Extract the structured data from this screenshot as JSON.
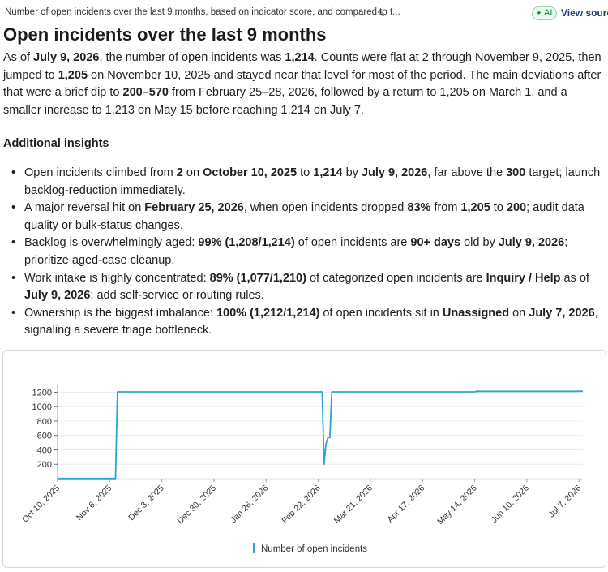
{
  "header": {
    "breadcrumb": "Number of open incidents over the last 9 months, based on indicator score, and compared to t...",
    "edit_icon": "pencil-icon",
    "ai_label": "AI",
    "ai_icon": "sparkle-icon",
    "view_source_label": "View source"
  },
  "title": "Open incidents over the last 9 months",
  "summary": [
    {
      "t": "As of ",
      "b": false
    },
    {
      "t": "July 9, 2026",
      "b": true
    },
    {
      "t": ", the number of open incidents was ",
      "b": false
    },
    {
      "t": "1,214",
      "b": true
    },
    {
      "t": ". Counts were flat at 2 through November 9, 2025, then jumped to ",
      "b": false
    },
    {
      "t": "1,205",
      "b": true
    },
    {
      "t": " on November 10, 2025 and stayed near that level for most of the period. The main deviations after that were a brief dip to ",
      "b": false
    },
    {
      "t": "200–570",
      "b": true
    },
    {
      "t": " from February 25–28, 2026, followed by a return to 1,205 on March 1, and a smaller increase to 1,213 on May 15 before reaching 1,214 on July 7.",
      "b": false
    }
  ],
  "insights_title": "Additional insights",
  "insights": [
    [
      {
        "t": "Open incidents climbed from ",
        "b": false
      },
      {
        "t": "2",
        "b": true
      },
      {
        "t": " on ",
        "b": false
      },
      {
        "t": "October 10, 2025",
        "b": true
      },
      {
        "t": " to ",
        "b": false
      },
      {
        "t": "1,214",
        "b": true
      },
      {
        "t": " by ",
        "b": false
      },
      {
        "t": "July 9, 2026",
        "b": true
      },
      {
        "t": ", far above the ",
        "b": false
      },
      {
        "t": "300",
        "b": true
      },
      {
        "t": " target; launch backlog-reduction immediately.",
        "b": false
      }
    ],
    [
      {
        "t": "A major reversal hit on ",
        "b": false
      },
      {
        "t": "February 25, 2026",
        "b": true
      },
      {
        "t": ", when open incidents dropped ",
        "b": false
      },
      {
        "t": "83%",
        "b": true
      },
      {
        "t": " from ",
        "b": false
      },
      {
        "t": "1,205",
        "b": true
      },
      {
        "t": " to ",
        "b": false
      },
      {
        "t": "200",
        "b": true
      },
      {
        "t": "; audit data quality or bulk-status changes.",
        "b": false
      }
    ],
    [
      {
        "t": "Backlog is overwhelmingly aged: ",
        "b": false
      },
      {
        "t": "99% (1,208/1,214)",
        "b": true
      },
      {
        "t": " of open incidents are ",
        "b": false
      },
      {
        "t": "90+ days",
        "b": true
      },
      {
        "t": " old by ",
        "b": false
      },
      {
        "t": "July 9, 2026",
        "b": true
      },
      {
        "t": "; prioritize aged-case cleanup.",
        "b": false
      }
    ],
    [
      {
        "t": "Work intake is highly concentrated: ",
        "b": false
      },
      {
        "t": "89% (1,077/1,210)",
        "b": true
      },
      {
        "t": " of categorized open incidents are ",
        "b": false
      },
      {
        "t": "Inquiry / Help",
        "b": true
      },
      {
        "t": " as of ",
        "b": false
      },
      {
        "t": "July 9, 2026",
        "b": true
      },
      {
        "t": "; add self-service or routing rules.",
        "b": false
      }
    ],
    [
      {
        "t": "Ownership is the biggest imbalance: ",
        "b": false
      },
      {
        "t": "100% (1,212/1,214)",
        "b": true
      },
      {
        "t": " of open incidents sit in ",
        "b": false
      },
      {
        "t": "Unassigned",
        "b": true
      },
      {
        "t": " on ",
        "b": false
      },
      {
        "t": "July 7, 2026",
        "b": true
      },
      {
        "t": ", signaling a severe triage bottleneck.",
        "b": false
      }
    ]
  ],
  "colors": {
    "series": "#2aa5d6",
    "ai_badge": "#1a7f3c",
    "link": "#1d3f73"
  },
  "chart_data": {
    "type": "line",
    "title": "",
    "xlabel": "",
    "ylabel": "",
    "x_ticks": [
      "Oct 10, 2025",
      "Nov 6, 2025",
      "Dec 3, 2025",
      "Dec 30, 2025",
      "Jan 26, 2026",
      "Feb 22, 2026",
      "Mar 21, 2026",
      "Apr 17, 2026",
      "May 14, 2026",
      "Jun 10, 2026",
      "Jul 7, 2026"
    ],
    "y_ticks": [
      200,
      400,
      600,
      800,
      1000,
      1200
    ],
    "ylim": [
      0,
      1250
    ],
    "xlim": [
      "2025-10-10",
      "2026-07-09"
    ],
    "grid": "horizontal",
    "legend": "bottom-center",
    "series": [
      {
        "name": "Number of open incidents",
        "points": [
          [
            "2025-10-10",
            2
          ],
          [
            "2025-11-09",
            2
          ],
          [
            "2025-11-10",
            1205
          ],
          [
            "2026-02-24",
            1205
          ],
          [
            "2026-02-25",
            200
          ],
          [
            "2026-02-26",
            480
          ],
          [
            "2026-02-27",
            570
          ],
          [
            "2026-02-28",
            570
          ],
          [
            "2026-03-01",
            1205
          ],
          [
            "2026-05-14",
            1205
          ],
          [
            "2026-05-15",
            1213
          ],
          [
            "2026-07-06",
            1213
          ],
          [
            "2026-07-07",
            1214
          ],
          [
            "2026-07-09",
            1214
          ]
        ]
      }
    ]
  }
}
